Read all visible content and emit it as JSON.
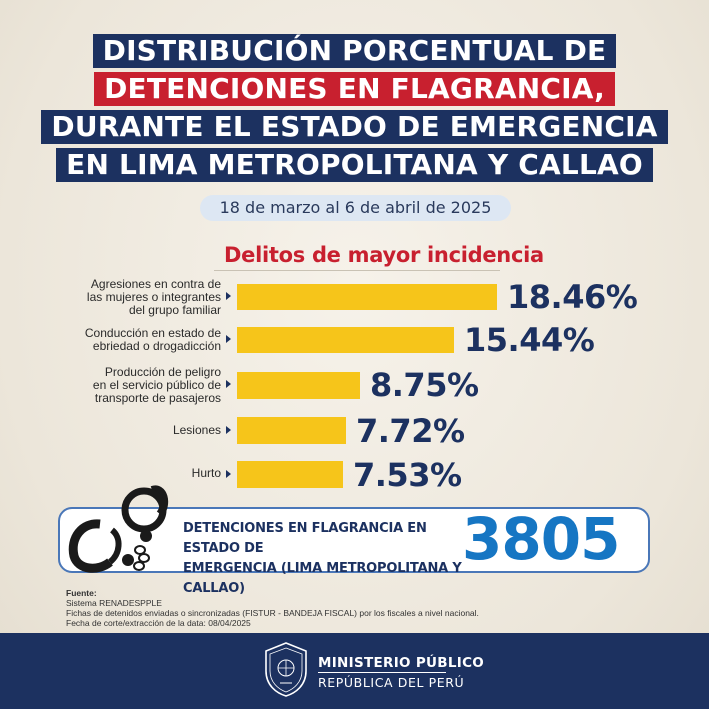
{
  "title_lines": [
    "DISTRIBUCIÓN PORCENTUAL DE",
    "DETENCIONES EN FLAGRANCIA,",
    "DURANTE EL ESTADO DE EMERGENCIA",
    "EN LIMA METROPOLITANA Y CALLAO"
  ],
  "date_range": "18 de marzo al 6 de abril de 2025",
  "chart_data": {
    "type": "bar",
    "orientation": "horizontal",
    "title": "Delitos de mayor incidencia",
    "categories": [
      [
        "Agresiones en contra de",
        "las mujeres o integrantes",
        "del grupo familiar"
      ],
      [
        "Conducción en estado de",
        "ebriedad o drogadicción"
      ],
      [
        "Producción de peligro",
        "en el servicio público de",
        "transporte de pasajeros"
      ],
      [
        "Lesiones"
      ],
      [
        "Hurto"
      ]
    ],
    "values": [
      18.46,
      15.44,
      8.75,
      7.72,
      7.53
    ],
    "value_labels": [
      "18.46%",
      "15.44%",
      "8.75%",
      "7.72%",
      "7.53%"
    ],
    "unit": "%",
    "xlim": [
      0,
      18.46
    ]
  },
  "total": {
    "label_lines": [
      "DETENCIONES EN FLAGRANCIA EN ESTADO DE",
      "EMERGENCIA (LIMA METROPOLITANA Y CALLAO)"
    ],
    "value": "3805"
  },
  "source": {
    "heading": "Fuente:",
    "lines": [
      "Sistema RENADESPPLE",
      "Fichas de detenidos enviadas o sincronizadas (FISTUR - BANDEJA FISCAL) por los fiscales a nivel nacional.",
      "Fecha de corte/extracción de la data: 08/04/2025"
    ]
  },
  "footer": {
    "title": "MINISTERIO PÚBLICO",
    "subtitle": "REPÚBLICA DEL PERÚ"
  },
  "colors": {
    "navy": "#1c3160",
    "red": "#c8202f",
    "bar": "#f6c51a",
    "total_value": "#1676c3"
  }
}
